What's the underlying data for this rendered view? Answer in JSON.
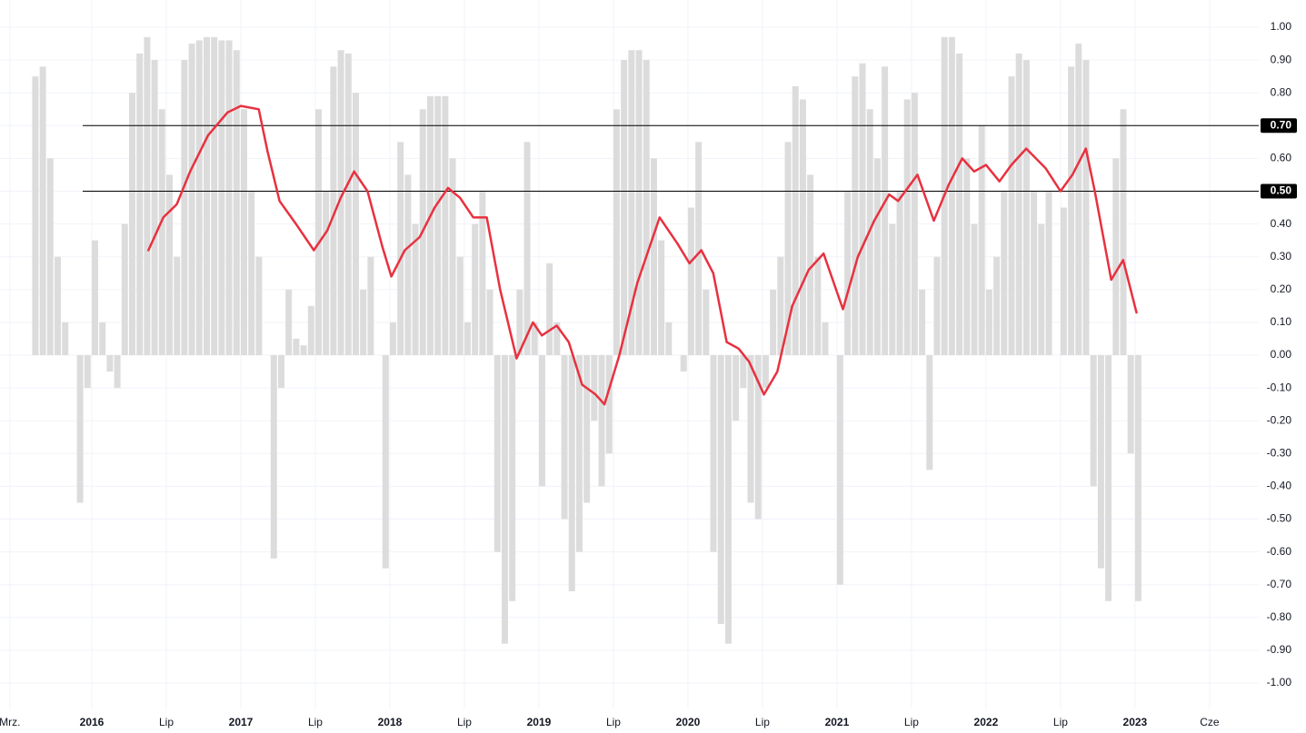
{
  "chart_data": {
    "type": "bar-line",
    "xlim": [
      2015.384,
      2023.83
    ],
    "ylim": [
      -1,
      1
    ],
    "grid": true,
    "xticks": [
      {
        "value": 2015.45,
        "label": "Mrz."
      },
      {
        "value": 2016,
        "label": "2016"
      },
      {
        "value": 2016.5,
        "label": "Lip"
      },
      {
        "value": 2017,
        "label": "2017"
      },
      {
        "value": 2017.5,
        "label": "Lip"
      },
      {
        "value": 2018,
        "label": "2018"
      },
      {
        "value": 2018.5,
        "label": "Lip"
      },
      {
        "value": 2019,
        "label": "2019"
      },
      {
        "value": 2019.5,
        "label": "Lip"
      },
      {
        "value": 2020,
        "label": "2020"
      },
      {
        "value": 2020.5,
        "label": "Lip"
      },
      {
        "value": 2021,
        "label": "2021"
      },
      {
        "value": 2021.5,
        "label": "Lip"
      },
      {
        "value": 2022,
        "label": "2022"
      },
      {
        "value": 2022.5,
        "label": "Lip"
      },
      {
        "value": 2023,
        "label": "2023"
      },
      {
        "value": 2023.5,
        "label": "Cze"
      }
    ],
    "yticks": [
      {
        "value": 1,
        "label": "1.00"
      },
      {
        "value": 0.9,
        "label": "0.90"
      },
      {
        "value": 0.8,
        "label": "0.80"
      },
      {
        "value": 0.7,
        "label": "0.70"
      },
      {
        "value": 0.6,
        "label": "0.60"
      },
      {
        "value": 0.5,
        "label": "0.50"
      },
      {
        "value": 0.4,
        "label": "0.40"
      },
      {
        "value": 0.3,
        "label": "0.30"
      },
      {
        "value": 0.2,
        "label": "0.20"
      },
      {
        "value": 0.1,
        "label": "0.10"
      },
      {
        "value": 0,
        "label": "0.00"
      },
      {
        "value": -0.1,
        "label": "-0.10"
      },
      {
        "value": -0.2,
        "label": "-0.20"
      },
      {
        "value": -0.3,
        "label": "-0.30"
      },
      {
        "value": -0.4,
        "label": "-0.40"
      },
      {
        "value": -0.5,
        "label": "-0.50"
      },
      {
        "value": -0.6,
        "label": "-0.60"
      },
      {
        "value": -0.7,
        "label": "-0.70"
      },
      {
        "value": -0.8,
        "label": "-0.80"
      },
      {
        "value": -0.9,
        "label": "-0.90"
      },
      {
        "value": -1,
        "label": "-1.00"
      }
    ],
    "hlines": [
      {
        "value": 0.7,
        "label": "0.70"
      },
      {
        "value": 0.5,
        "label": "0.50"
      }
    ],
    "bars": {
      "color": "#dcdcdc",
      "width": 0.05,
      "x": [
        2015.6,
        2015.65,
        2015.7,
        2015.75,
        2015.8,
        2015.85,
        2015.9,
        2015.95,
        2016,
        2016.05,
        2016.1,
        2016.15,
        2016.2,
        2016.25,
        2016.3,
        2016.35,
        2016.4,
        2016.45,
        2016.5,
        2016.55,
        2016.6,
        2016.65,
        2016.7,
        2016.75,
        2016.8,
        2016.85,
        2016.9,
        2016.95,
        2017,
        2017.05,
        2017.1,
        2017.15,
        2017.2,
        2017.25,
        2017.3,
        2017.35,
        2017.4,
        2017.45,
        2017.5,
        2017.55,
        2017.6,
        2017.65,
        2017.7,
        2017.75,
        2017.8,
        2017.85,
        2017.9,
        2017.95,
        2018,
        2018.05,
        2018.1,
        2018.15,
        2018.2,
        2018.25,
        2018.3,
        2018.35,
        2018.4,
        2018.45,
        2018.5,
        2018.55,
        2018.6,
        2018.65,
        2018.7,
        2018.75,
        2018.8,
        2018.85,
        2018.9,
        2018.95,
        2019,
        2019.05,
        2019.1,
        2019.15,
        2019.2,
        2019.25,
        2019.3,
        2019.35,
        2019.4,
        2019.45,
        2019.5,
        2019.55,
        2019.6,
        2019.65,
        2019.7,
        2019.75,
        2019.8,
        2019.85,
        2019.9,
        2019.95,
        2020,
        2020.05,
        2020.1,
        2020.15,
        2020.2,
        2020.25,
        2020.3,
        2020.35,
        2020.4,
        2020.45,
        2020.5,
        2020.55,
        2020.6,
        2020.65,
        2020.7,
        2020.75,
        2020.8,
        2020.85,
        2020.9,
        2020.95,
        2021,
        2021.05,
        2021.1,
        2021.15,
        2021.2,
        2021.25,
        2021.3,
        2021.35,
        2021.4,
        2021.45,
        2021.5,
        2021.55,
        2021.6,
        2021.65,
        2021.7,
        2021.75,
        2021.8,
        2021.85,
        2021.9,
        2021.95,
        2022,
        2022.05,
        2022.1,
        2022.15,
        2022.2,
        2022.25,
        2022.3,
        2022.35,
        2022.4,
        2022.45,
        2022.5,
        2022.55,
        2022.6,
        2022.65,
        2022.7,
        2022.75,
        2022.8,
        2022.85,
        2022.9,
        2022.95,
        2023
      ],
      "values": [
        0.85,
        0.88,
        0.6,
        0.3,
        0.1,
        0,
        -0.45,
        -0.1,
        0.35,
        0.1,
        -0.05,
        -0.1,
        0.4,
        0.8,
        0.92,
        0.97,
        0.9,
        0.75,
        0.55,
        0.3,
        0.9,
        0.95,
        0.96,
        0.97,
        0.97,
        0.96,
        0.96,
        0.93,
        0.75,
        0.5,
        0.3,
        0,
        -0.62,
        -0.1,
        0.2,
        0.05,
        0.03,
        0.15,
        0.75,
        0.5,
        0.88,
        0.93,
        0.92,
        0.8,
        0.2,
        0.3,
        0,
        -0.65,
        0.1,
        0.65,
        0.55,
        0.4,
        0.75,
        0.79,
        0.79,
        0.79,
        0.6,
        0.3,
        0.1,
        0.4,
        0.5,
        0.2,
        -0.6,
        -0.88,
        -0.75,
        0.2,
        0.65,
        0.1,
        -0.4,
        0.28,
        0.1,
        -0.5,
        -0.72,
        -0.6,
        -0.45,
        -0.2,
        -0.4,
        -0.3,
        0.75,
        0.9,
        0.93,
        0.93,
        0.9,
        0.6,
        0.35,
        0.1,
        0,
        -0.05,
        0.45,
        0.65,
        0.2,
        -0.6,
        -0.82,
        -0.88,
        -0.2,
        -0.1,
        -0.45,
        -0.5,
        -0.1,
        0.2,
        0.3,
        0.65,
        0.82,
        0.78,
        0.55,
        0.3,
        0.1,
        0,
        -0.7,
        0.5,
        0.85,
        0.89,
        0.75,
        0.6,
        0.88,
        0.4,
        0.5,
        0.78,
        0.8,
        0.2,
        -0.35,
        0.3,
        0.97,
        0.97,
        0.92,
        0.6,
        0.4,
        0.7,
        0.2,
        0.3,
        0.5,
        0.85,
        0.92,
        0.9,
        0.5,
        0.4,
        0.5,
        0,
        0.45,
        0.88,
        0.95,
        0.9,
        -0.4,
        -0.65,
        -0.75,
        0.6,
        0.75,
        -0.3,
        -0.75
      ]
    },
    "line": {
      "color": "#e8313f",
      "x": [
        2016.38,
        2016.48,
        2016.57,
        2016.66,
        2016.78,
        2016.91,
        2017,
        2017.12,
        2017.18,
        2017.26,
        2017.37,
        2017.49,
        2017.58,
        2017.67,
        2017.76,
        2017.85,
        2017.95,
        2018.01,
        2018.1,
        2018.2,
        2018.3,
        2018.39,
        2018.47,
        2018.56,
        2018.65,
        2018.74,
        2018.85,
        2018.96,
        2019.02,
        2019.12,
        2019.2,
        2019.29,
        2019.38,
        2019.44,
        2019.54,
        2019.66,
        2019.81,
        2019.93,
        2020.01,
        2020.09,
        2020.17,
        2020.26,
        2020.34,
        2020.41,
        2020.51,
        2020.6,
        2020.7,
        2020.81,
        2020.91,
        2021.04,
        2021.14,
        2021.25,
        2021.35,
        2021.41,
        2021.54,
        2021.65,
        2021.75,
        2021.84,
        2021.92,
        2022,
        2022.09,
        2022.17,
        2022.27,
        2022.4,
        2022.5,
        2022.58,
        2022.67,
        2022.73,
        2022.84,
        2022.92,
        2023.01
      ],
      "values": [
        0.32,
        0.42,
        0.46,
        0.56,
        0.67,
        0.74,
        0.76,
        0.75,
        0.62,
        0.47,
        0.4,
        0.32,
        0.38,
        0.48,
        0.56,
        0.5,
        0.33,
        0.24,
        0.32,
        0.36,
        0.45,
        0.51,
        0.48,
        0.42,
        0.42,
        0.2,
        -0.01,
        0.1,
        0.06,
        0.09,
        0.04,
        -0.09,
        -0.12,
        -0.15,
        0,
        0.22,
        0.42,
        0.34,
        0.28,
        0.32,
        0.25,
        0.04,
        0.02,
        -0.02,
        -0.12,
        -0.05,
        0.15,
        0.26,
        0.31,
        0.14,
        0.3,
        0.41,
        0.49,
        0.47,
        0.55,
        0.41,
        0.52,
        0.6,
        0.56,
        0.58,
        0.53,
        0.58,
        0.63,
        0.57,
        0.5,
        0.55,
        0.63,
        0.5,
        0.23,
        0.29,
        0.13
      ]
    }
  }
}
